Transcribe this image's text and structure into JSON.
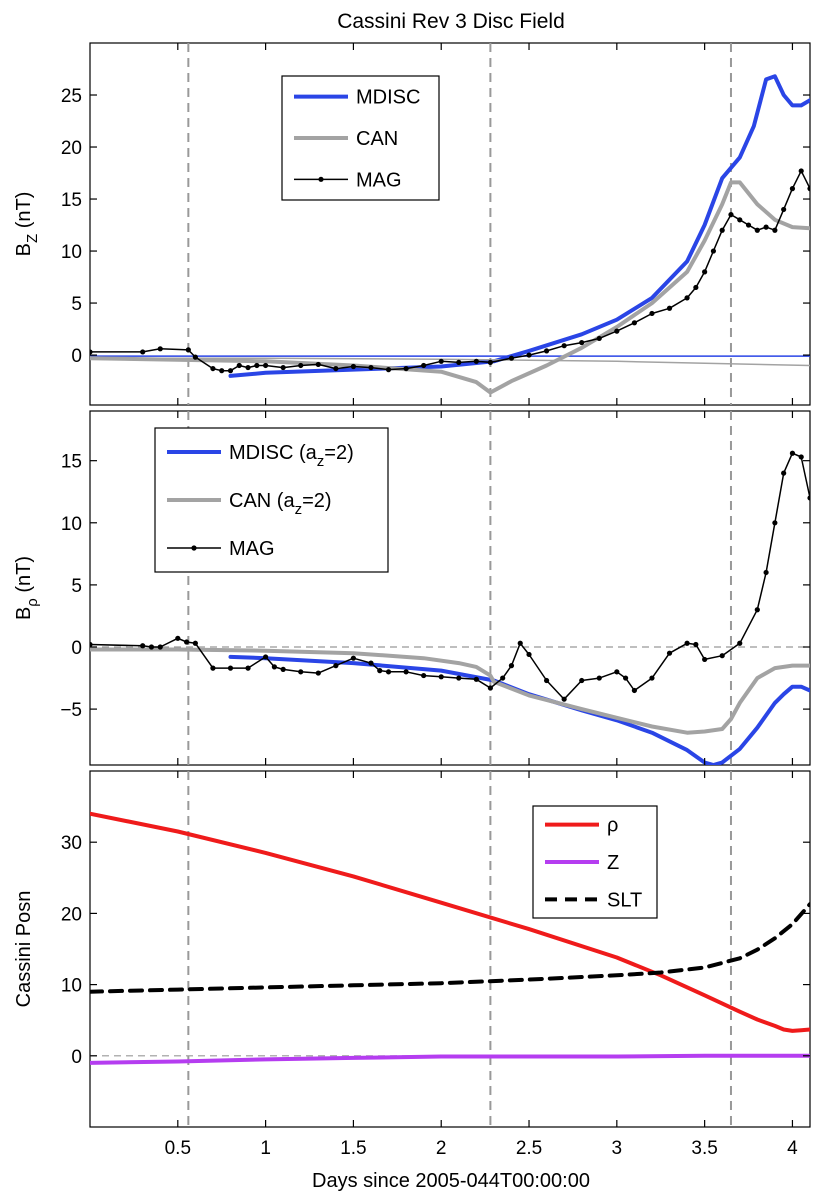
{
  "chart_data": [
    {
      "type": "line",
      "title": "Cassini Rev 3 Disc Field",
      "ylabel": "B",
      "ylabel_sub": "Z",
      "ylabel_unit": "(nT)",
      "xlim": [
        0,
        4.1
      ],
      "ylim": [
        -4.8,
        30
      ],
      "yticks": [
        0,
        5,
        10,
        15,
        20,
        25
      ],
      "vlines": [
        0.56,
        2.28,
        3.65
      ],
      "legend_position": "top-center",
      "series": [
        {
          "name": "MDISC",
          "color": "#2a45e6",
          "width": 4,
          "marker": false,
          "x": [
            0.8,
            1.0,
            1.5,
            2.0,
            2.3,
            2.5,
            2.8,
            3.0,
            3.2,
            3.4,
            3.5,
            3.6,
            3.7,
            3.78,
            3.85,
            3.9,
            3.95,
            4.0,
            4.05,
            4.1
          ],
          "y": [
            -2.0,
            -1.7,
            -1.4,
            -1.1,
            -0.6,
            0.4,
            2.0,
            3.4,
            5.5,
            9.0,
            12.5,
            17.0,
            19.0,
            22.0,
            26.5,
            26.8,
            25.0,
            24.0,
            24.0,
            24.5
          ]
        },
        {
          "name": "MDISC",
          "color": "#2a45e6",
          "width": 1.5,
          "marker": false,
          "x": [
            0,
            1.0,
            2.0,
            3.0,
            4.1
          ],
          "y": [
            -0.1,
            -0.1,
            -0.1,
            -0.1,
            -0.1
          ]
        },
        {
          "name": "CAN",
          "color": "#a3a3a3",
          "width": 4,
          "marker": false,
          "x": [
            0.0,
            1.0,
            1.5,
            2.0,
            2.2,
            2.28,
            2.4,
            2.6,
            2.8,
            3.0,
            3.2,
            3.4,
            3.5,
            3.6,
            3.65,
            3.7,
            3.8,
            3.9,
            4.0,
            4.1
          ],
          "y": [
            -0.3,
            -0.6,
            -1.0,
            -1.6,
            -2.6,
            -3.6,
            -2.5,
            -1.0,
            0.7,
            2.7,
            5.0,
            8.0,
            11.0,
            14.5,
            16.6,
            16.6,
            14.5,
            13.0,
            12.3,
            12.2
          ]
        },
        {
          "name": "CAN",
          "color": "#a3a3a3",
          "width": 1.5,
          "marker": false,
          "x": [
            0,
            1.0,
            2.0,
            3.0,
            4.1
          ],
          "y": [
            -0.3,
            -0.3,
            -0.4,
            -0.6,
            -1.0
          ]
        },
        {
          "name": "MAG",
          "color": "#000000",
          "width": 1.5,
          "marker": true,
          "x": [
            0.0,
            0.3,
            0.4,
            0.56,
            0.6,
            0.7,
            0.75,
            0.8,
            0.85,
            0.9,
            0.95,
            1.0,
            1.1,
            1.2,
            1.3,
            1.4,
            1.5,
            1.6,
            1.7,
            1.8,
            1.9,
            2.0,
            2.1,
            2.2,
            2.28,
            2.4,
            2.5,
            2.6,
            2.7,
            2.8,
            2.9,
            3.0,
            3.1,
            3.2,
            3.3,
            3.4,
            3.45,
            3.5,
            3.55,
            3.6,
            3.65,
            3.7,
            3.75,
            3.8,
            3.85,
            3.9,
            3.95,
            4.0,
            4.05,
            4.1
          ],
          "y": [
            0.3,
            0.3,
            0.6,
            0.5,
            -0.2,
            -1.3,
            -1.5,
            -1.5,
            -1.0,
            -1.2,
            -1.0,
            -1.0,
            -1.2,
            -1.0,
            -0.9,
            -1.3,
            -1.1,
            -1.2,
            -1.4,
            -1.3,
            -1.0,
            -0.6,
            -0.7,
            -0.6,
            -0.7,
            -0.3,
            0.0,
            0.4,
            0.9,
            1.2,
            1.6,
            2.3,
            3.1,
            4.0,
            4.5,
            5.5,
            6.5,
            8.0,
            10.0,
            12.0,
            13.5,
            13.0,
            12.5,
            12.0,
            12.3,
            12.0,
            14.0,
            16.0,
            17.7,
            16.0
          ]
        }
      ]
    },
    {
      "type": "line",
      "ylabel": "B",
      "ylabel_sub": "ρ",
      "ylabel_unit": "(nT)",
      "xlim": [
        0,
        4.1
      ],
      "ylim": [
        -9.5,
        19
      ],
      "yticks": [
        -5,
        0,
        5,
        10,
        15
      ],
      "vlines": [
        0.56,
        2.28,
        3.65
      ],
      "hline": 0,
      "legend_position": "top-left",
      "series": [
        {
          "name": "MDISC (a",
          "name_sub": "z",
          "name_suffix": "=2)",
          "color": "#2a45e6",
          "width": 4,
          "marker": false,
          "x": [
            0.8,
            1.0,
            1.5,
            2.0,
            2.3,
            2.5,
            2.8,
            3.0,
            3.2,
            3.4,
            3.5,
            3.55,
            3.6,
            3.7,
            3.8,
            3.9,
            3.95,
            4.0,
            4.05,
            4.1
          ],
          "y": [
            -0.8,
            -0.9,
            -1.3,
            -1.9,
            -2.7,
            -3.8,
            -5.1,
            -5.9,
            -6.9,
            -8.3,
            -9.3,
            -9.5,
            -9.3,
            -8.2,
            -6.5,
            -4.5,
            -3.8,
            -3.2,
            -3.2,
            -3.5
          ]
        },
        {
          "name": "CAN (a",
          "name_sub": "z",
          "name_suffix": "=2)",
          "color": "#a3a3a3",
          "width": 4,
          "marker": false,
          "x": [
            0.0,
            0.5,
            1.0,
            1.5,
            1.9,
            2.1,
            2.2,
            2.28,
            2.3,
            2.5,
            2.8,
            3.0,
            3.2,
            3.4,
            3.5,
            3.6,
            3.65,
            3.7,
            3.8,
            3.9,
            4.0,
            4.1
          ],
          "y": [
            -0.2,
            -0.2,
            -0.3,
            -0.5,
            -0.9,
            -1.3,
            -1.6,
            -2.3,
            -2.8,
            -3.9,
            -5.0,
            -5.7,
            -6.4,
            -6.9,
            -6.8,
            -6.6,
            -5.8,
            -4.5,
            -2.5,
            -1.7,
            -1.5,
            -1.5
          ]
        },
        {
          "name": "MAG",
          "color": "#000000",
          "width": 1.5,
          "marker": true,
          "x": [
            0.0,
            0.3,
            0.35,
            0.4,
            0.5,
            0.55,
            0.6,
            0.7,
            0.8,
            0.9,
            1.0,
            1.05,
            1.1,
            1.2,
            1.3,
            1.4,
            1.5,
            1.6,
            1.65,
            1.7,
            1.8,
            1.9,
            2.0,
            2.1,
            2.2,
            2.28,
            2.35,
            2.4,
            2.45,
            2.5,
            2.6,
            2.7,
            2.8,
            2.9,
            3.0,
            3.05,
            3.1,
            3.2,
            3.3,
            3.4,
            3.45,
            3.5,
            3.6,
            3.7,
            3.8,
            3.85,
            3.9,
            3.95,
            4.0,
            4.05,
            4.1
          ],
          "y": [
            0.2,
            0.1,
            0.0,
            0.0,
            0.7,
            0.4,
            0.3,
            -1.7,
            -1.7,
            -1.7,
            -0.8,
            -1.6,
            -1.8,
            -2.0,
            -2.1,
            -1.5,
            -0.9,
            -1.3,
            -1.9,
            -2.0,
            -2.0,
            -2.3,
            -2.4,
            -2.5,
            -2.6,
            -3.3,
            -2.5,
            -1.5,
            0.3,
            -0.6,
            -2.7,
            -4.2,
            -2.7,
            -2.5,
            -2.0,
            -2.5,
            -3.5,
            -2.5,
            -0.5,
            0.3,
            0.2,
            -1.0,
            -0.7,
            0.3,
            3.0,
            6.0,
            10.0,
            14.0,
            15.6,
            15.3,
            12.0
          ]
        }
      ]
    },
    {
      "type": "line",
      "ylabel": "Cassini Posn",
      "xlabel": "Days since 2005-044T00:00:00",
      "xlim": [
        0,
        4.1
      ],
      "ylim": [
        -10,
        40
      ],
      "yticks": [
        0,
        10,
        20,
        30
      ],
      "xticks": [
        0.5,
        1,
        1.5,
        2,
        2.5,
        3,
        3.5,
        4
      ],
      "xtick_labels": [
        "0.5",
        "1",
        "1.5",
        "2",
        "2.5",
        "3",
        "3.5",
        "4"
      ],
      "vlines": [
        0.56,
        2.28,
        3.65
      ],
      "hline": 0,
      "legend_position": "top-right",
      "series": [
        {
          "name": "ρ",
          "color": "#ef1b1b",
          "width": 4,
          "dash": false,
          "x": [
            0.0,
            0.5,
            1.0,
            1.5,
            2.0,
            2.5,
            3.0,
            3.25,
            3.5,
            3.7,
            3.8,
            3.9,
            3.95,
            4.0,
            4.05,
            4.1
          ],
          "y": [
            34.0,
            31.5,
            28.5,
            25.2,
            21.5,
            17.8,
            13.8,
            11.3,
            8.5,
            6.2,
            5.1,
            4.2,
            3.7,
            3.5,
            3.6,
            3.7
          ]
        },
        {
          "name": "Z",
          "color": "#b53df0",
          "width": 4,
          "dash": false,
          "x": [
            0.0,
            0.5,
            1.0,
            1.5,
            2.0,
            2.5,
            3.0,
            3.5,
            4.1
          ],
          "y": [
            -1.0,
            -0.8,
            -0.5,
            -0.3,
            -0.1,
            -0.1,
            -0.1,
            0.0,
            0.0
          ]
        },
        {
          "name": "SLT",
          "color": "#000000",
          "width": 4,
          "dash": true,
          "x": [
            0.0,
            0.5,
            1.0,
            1.5,
            2.0,
            2.5,
            3.0,
            3.25,
            3.5,
            3.7,
            3.8,
            3.9,
            4.0,
            4.1
          ],
          "y": [
            9.0,
            9.3,
            9.6,
            9.9,
            10.2,
            10.7,
            11.3,
            11.7,
            12.4,
            13.7,
            14.9,
            16.5,
            18.5,
            21.3
          ]
        }
      ]
    }
  ]
}
